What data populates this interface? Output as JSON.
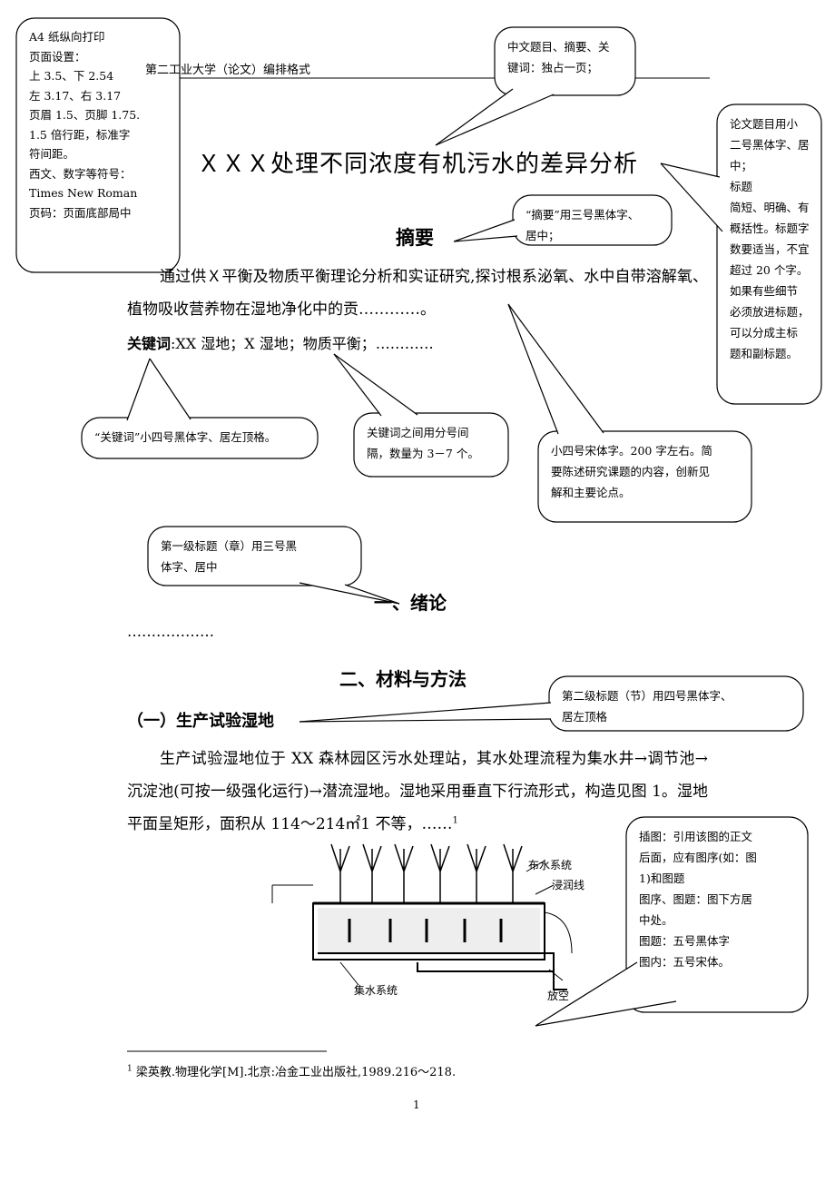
{
  "header": {
    "text": "第二工业大学（论文）编排格式"
  },
  "title": "ＸＸＸ处理不同浓度有机污水的差异分析",
  "abstract": {
    "heading": "摘要",
    "body": "通过供Ｘ平衡及物质平衡理论分析和实证研究,探讨根系泌氧、水中自带溶解氧、植物吸收营养物在湿地净化中的贡…………。",
    "keywords_label": "关键词",
    "keywords": ":XX 湿地；X 湿地；物质平衡；…………"
  },
  "sections": [
    {
      "heading": "一、绪论",
      "body": "………………"
    },
    {
      "heading": "二、材料与方法"
    }
  ],
  "subsection": {
    "heading": "（一）生产试验湿地",
    "body": "生产试验湿地位于 XX 森林园区污水处理站，其水处理流程为集水井→调节池→沉淀池(可按一级强化运行)→潜流湿地。湿地采用垂直下行流形式，构造见图 1。湿地平面呈矩形，面积从 114～214㎡1 不等，……",
    "footnote_ref": "1"
  },
  "figure": {
    "labels": [
      "布水系统",
      "浸润线",
      "集水系统",
      "放空"
    ]
  },
  "footnote": {
    "mark": "1",
    "text": "梁英教.物理化学[M].北京:冶金工业出版社,1989.216～218."
  },
  "page_number": "1",
  "callouts": [
    {
      "lines": [
        "A4 纸纵向打印",
        "页面设置：",
        "上 3.5、下 2.54",
        "左 3.17、右 3.17",
        "页眉 1.5、页脚 1.75.",
        "1.5 倍行距，标准字",
        "符间距。",
        "西文、数字等符号：",
        "Times New Roman",
        "页码：页面底部局中"
      ]
    },
    {
      "lines": [
        "中文题目、摘要、关",
        "键词：独占一页；"
      ]
    },
    {
      "lines": [
        "论文题目用小",
        "二号黑体字、居",
        "中；",
        "标题",
        "简短、明确、有",
        "概括性。标题字",
        "数要适当，不宜",
        "超过 20 个字。",
        "如果有些细节",
        "必须放进标题，",
        "可以分成主标",
        "题和副标题。"
      ]
    },
    {
      "lines": [
        "“摘要”用三号黑体字、",
        "居中；"
      ]
    },
    {
      "lines": [
        "“关键词”小四号黑体字、居左顶格。"
      ]
    },
    {
      "lines": [
        "关键词之间用分号间",
        "隔，数量为 3－7 个。"
      ]
    },
    {
      "lines": [
        "小四号宋体字。200 字左右。简",
        "要陈述研究课题的内容，创新见",
        "解和主要论点。"
      ]
    },
    {
      "lines": [
        "第一级标题（章）用三号黑",
        "体字、居中"
      ]
    },
    {
      "lines": [
        "第二级标题（节）用四号黑体字、",
        "居左顶格"
      ]
    },
    {
      "lines": [
        "插图：引用该图的正文",
        "后面，应有图序(如：图",
        "1)和图题",
        "图序、图题：图下方居",
        "中处。",
        "图题：五号黑体字",
        "图内：五号宋体。"
      ]
    }
  ]
}
